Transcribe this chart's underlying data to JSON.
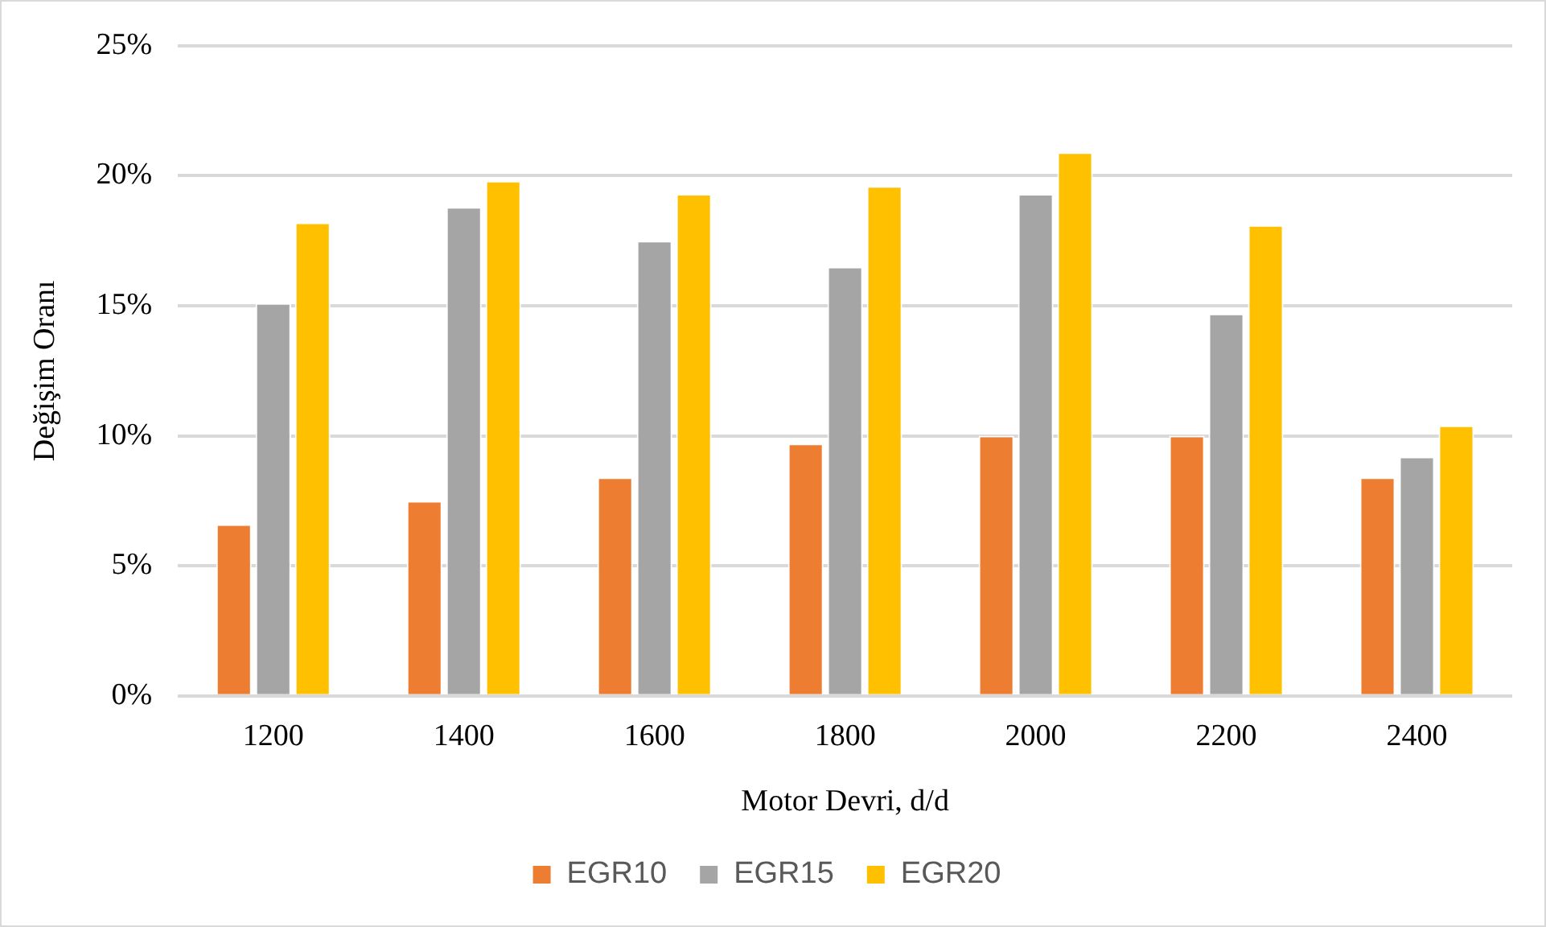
{
  "chart_data": {
    "type": "bar",
    "xlabel": "Motor Devri, d/d",
    "ylabel": "Değişim Oranı",
    "categories": [
      "1200",
      "1400",
      "1600",
      "1800",
      "2000",
      "2200",
      "2400"
    ],
    "series": [
      {
        "name": "EGR10",
        "color": "#ed7d31",
        "values": [
          6.6,
          7.5,
          8.4,
          9.7,
          10.0,
          10.0,
          8.4
        ]
      },
      {
        "name": "EGR15",
        "color": "#a5a5a5",
        "values": [
          15.1,
          18.8,
          17.5,
          16.5,
          19.3,
          14.7,
          9.2
        ]
      },
      {
        "name": "EGR20",
        "color": "#ffc000",
        "values": [
          18.2,
          19.8,
          19.3,
          19.6,
          20.9,
          18.1,
          10.4
        ]
      }
    ],
    "ylim": [
      0,
      25
    ],
    "yticks": [
      {
        "value": 0,
        "label": "0%"
      },
      {
        "value": 5,
        "label": "5%"
      },
      {
        "value": 10,
        "label": "10%"
      },
      {
        "value": 15,
        "label": "15%"
      },
      {
        "value": 20,
        "label": "20%"
      },
      {
        "value": 25,
        "label": "25%"
      }
    ],
    "grid": "y",
    "legend": "bottom"
  }
}
